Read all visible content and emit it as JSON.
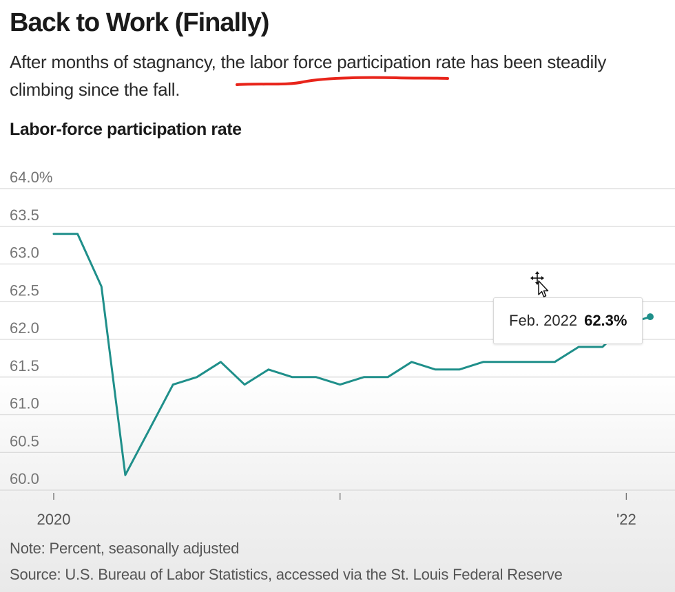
{
  "header": {
    "title": "Back to Work (Finally)",
    "subtitle_before": "After months of stagnancy, the ",
    "subtitle_highlight": "labor force participation rate",
    "subtitle_after": " has been steadily climbing since the fall."
  },
  "colors": {
    "line": "#1f8f8a",
    "underline": "#e8241a",
    "grid": "#d9d9d9"
  },
  "chart_data": {
    "type": "line",
    "title": "Labor-force participation rate",
    "ylim": [
      60.0,
      64.0
    ],
    "yticks": [
      {
        "value": 64.0,
        "label": "64.0%"
      },
      {
        "value": 63.5,
        "label": "63.5"
      },
      {
        "value": 63.0,
        "label": "63.0"
      },
      {
        "value": 62.5,
        "label": "62.5"
      },
      {
        "value": 62.0,
        "label": "62.0"
      },
      {
        "value": 61.5,
        "label": "61.5"
      },
      {
        "value": 61.0,
        "label": "61.0"
      },
      {
        "value": 60.5,
        "label": "60.5"
      },
      {
        "value": 60.0,
        "label": "60.0"
      }
    ],
    "xticks": [
      {
        "date": "2020-01",
        "label": "2020"
      },
      {
        "date": "2021-01",
        "label": ""
      },
      {
        "date": "2022-01",
        "label": "'22"
      }
    ],
    "grid": true,
    "series": [
      {
        "name": "",
        "points": [
          {
            "date": "2020-01",
            "value": 63.4
          },
          {
            "date": "2020-02",
            "value": 63.4
          },
          {
            "date": "2020-03",
            "value": 62.7
          },
          {
            "date": "2020-04",
            "value": 60.2
          },
          {
            "date": "2020-05",
            "value": 60.8
          },
          {
            "date": "2020-06",
            "value": 61.4
          },
          {
            "date": "2020-07",
            "value": 61.5
          },
          {
            "date": "2020-08",
            "value": 61.7
          },
          {
            "date": "2020-09",
            "value": 61.4
          },
          {
            "date": "2020-10",
            "value": 61.6
          },
          {
            "date": "2020-11",
            "value": 61.5
          },
          {
            "date": "2020-12",
            "value": 61.5
          },
          {
            "date": "2021-01",
            "value": 61.4
          },
          {
            "date": "2021-02",
            "value": 61.5
          },
          {
            "date": "2021-03",
            "value": 61.5
          },
          {
            "date": "2021-04",
            "value": 61.7
          },
          {
            "date": "2021-05",
            "value": 61.6
          },
          {
            "date": "2021-06",
            "value": 61.6
          },
          {
            "date": "2021-07",
            "value": 61.7
          },
          {
            "date": "2021-08",
            "value": 61.7
          },
          {
            "date": "2021-09",
            "value": 61.7
          },
          {
            "date": "2021-10",
            "value": 61.7
          },
          {
            "date": "2021-11",
            "value": 61.9
          },
          {
            "date": "2021-12",
            "value": 61.9
          },
          {
            "date": "2022-01",
            "value": 62.2
          },
          {
            "date": "2022-02",
            "value": 62.3
          }
        ]
      }
    ],
    "tooltip": {
      "label": "Feb. 2022",
      "value": "62.3%",
      "date": "2022-02"
    },
    "note": "Note: Percent, seasonally adjusted",
    "source": "Source: U.S. Bureau of Labor Statistics, accessed via the St. Louis Federal Reserve"
  }
}
